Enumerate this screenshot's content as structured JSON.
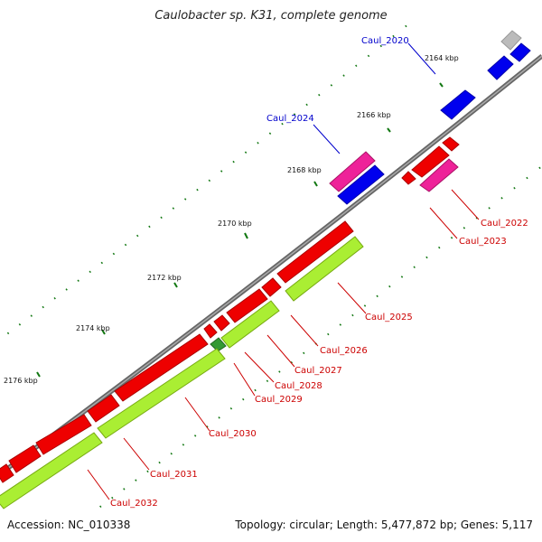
{
  "title": "Caulobacter sp. K31, complete genome",
  "accession": "Accession: NC_010338",
  "genome_info": "Topology: circular; Length: 5,477,872 bp; Genes: 5,117",
  "colors": {
    "backbone": "#777777",
    "gene_red": "#ee0000",
    "gene_blue": "#0000ee",
    "gene_magenta": "#ee2299",
    "gene_green": "#aaee33",
    "gene_grey": "#bbbbbb",
    "tick": "#117711",
    "label_red": "#cc0000",
    "label_blue": "#0000cc"
  },
  "ticks": [
    {
      "label": "2164 kbp"
    },
    {
      "label": "2166 kbp"
    },
    {
      "label": "2168 kbp"
    },
    {
      "label": "2170 kbp"
    },
    {
      "label": "2172 kbp"
    },
    {
      "label": "2174 kbp"
    },
    {
      "label": "2176 kbp"
    }
  ],
  "gene_labels": [
    {
      "text": "Caul_2020",
      "color": "blue"
    },
    {
      "text": "Caul_2024",
      "color": "blue"
    },
    {
      "text": "Caul_2022",
      "color": "red"
    },
    {
      "text": "Caul_2023",
      "color": "red"
    },
    {
      "text": "Caul_2025",
      "color": "red"
    },
    {
      "text": "Caul_2026",
      "color": "red"
    },
    {
      "text": "Caul_2027",
      "color": "red"
    },
    {
      "text": "Caul_2028",
      "color": "red"
    },
    {
      "text": "Caul_2029",
      "color": "red"
    },
    {
      "text": "Caul_2030",
      "color": "red"
    },
    {
      "text": "Caul_2031",
      "color": "red"
    },
    {
      "text": "Caul_2032",
      "color": "red"
    }
  ]
}
